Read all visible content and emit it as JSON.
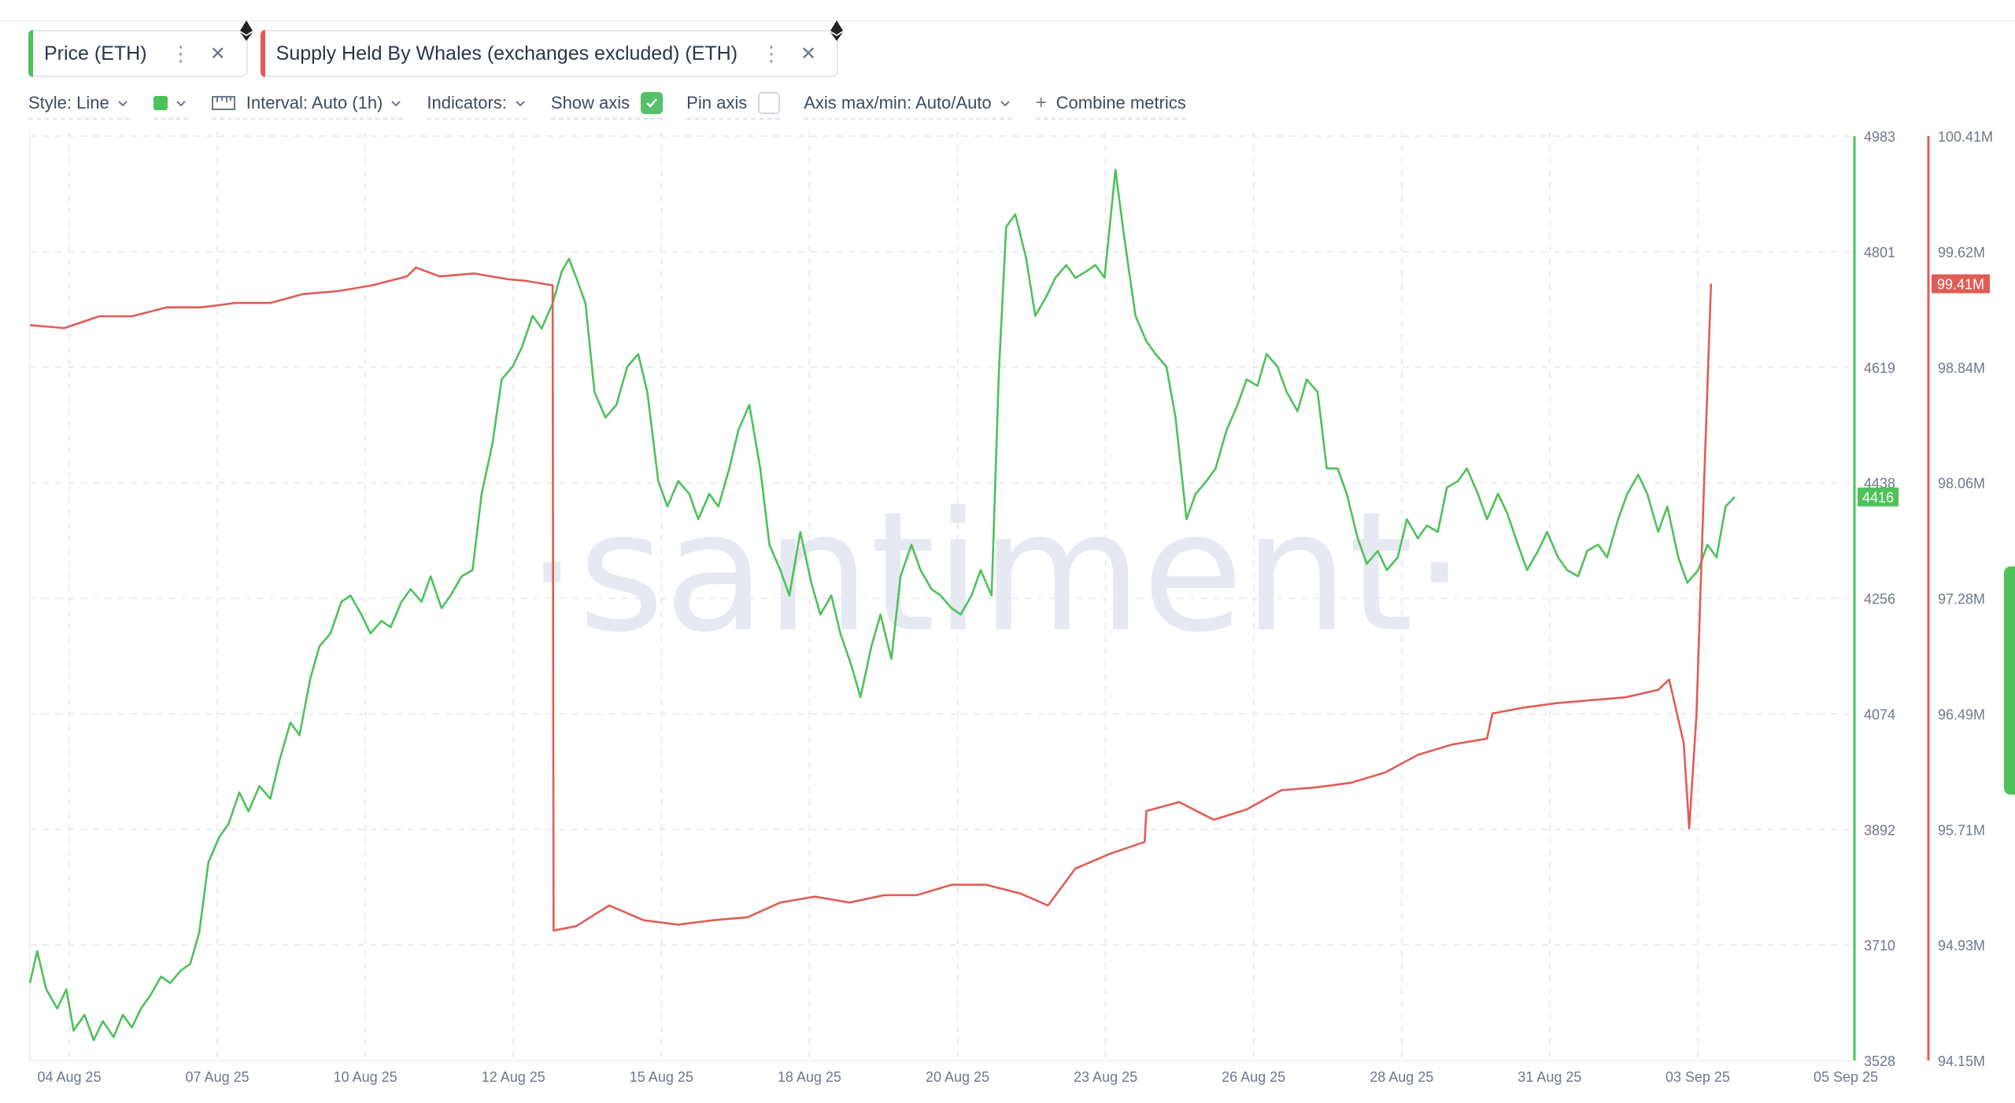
{
  "metrics": [
    {
      "label": "Price (ETH)",
      "color": "#4ec15b",
      "icon": "ethereum-icon"
    },
    {
      "label": "Supply Held By Whales (exchanges excluded) (ETH)",
      "color": "#e05d55",
      "icon": "ethereum-icon"
    }
  ],
  "toolbar": {
    "style_label": "Style: Line",
    "interval_label": "Interval: Auto (1h)",
    "indicators_label": "Indicators:",
    "show_axis_label": "Show axis",
    "show_axis_checked": true,
    "pin_axis_label": "Pin axis",
    "pin_axis_checked": false,
    "axis_minmax_label": "Axis max/min: Auto/Auto",
    "combine_label": "Combine metrics"
  },
  "watermark": "·santiment·",
  "chart_data": {
    "type": "line",
    "x_ticks": [
      "04 Aug 25",
      "07 Aug 25",
      "10 Aug 25",
      "12 Aug 25",
      "15 Aug 25",
      "18 Aug 25",
      "20 Aug 25",
      "23 Aug 25",
      "26 Aug 25",
      "28 Aug 25",
      "31 Aug 25",
      "03 Sep 25",
      "05 Sep 25"
    ],
    "xlim": [
      0,
      100
    ],
    "y_left": {
      "ticks": [
        "4983",
        "4801",
        "4619",
        "4438",
        "4256",
        "4074",
        "3892",
        "3710",
        "3528"
      ],
      "range": [
        3528,
        4983
      ],
      "color": "#4ec15b"
    },
    "y_right": {
      "ticks": [
        "100.41M",
        "99.62M",
        "98.84M",
        "98.06M",
        "97.28M",
        "96.49M",
        "95.71M",
        "94.93M",
        "94.15M"
      ],
      "range": [
        94.15,
        100.41
      ],
      "color": "#e05d55"
    },
    "grid": true,
    "current_labels": {
      "price": "4416",
      "supply": "99.41M"
    },
    "series": [
      {
        "name": "Price (ETH)",
        "axis": "left",
        "color": "#4ec15b",
        "points": [
          [
            0,
            3650
          ],
          [
            0.4,
            3700
          ],
          [
            0.9,
            3640
          ],
          [
            1.5,
            3610
          ],
          [
            2.0,
            3640
          ],
          [
            2.4,
            3575
          ],
          [
            3.0,
            3600
          ],
          [
            3.5,
            3560
          ],
          [
            4.0,
            3590
          ],
          [
            4.6,
            3565
          ],
          [
            5.1,
            3600
          ],
          [
            5.6,
            3580
          ],
          [
            6.1,
            3610
          ],
          [
            6.6,
            3630
          ],
          [
            7.2,
            3660
          ],
          [
            7.7,
            3650
          ],
          [
            8.3,
            3670
          ],
          [
            8.8,
            3680
          ],
          [
            9.3,
            3730
          ],
          [
            9.8,
            3840
          ],
          [
            10.4,
            3880
          ],
          [
            10.9,
            3900
          ],
          [
            11.5,
            3950
          ],
          [
            12.0,
            3920
          ],
          [
            12.6,
            3960
          ],
          [
            13.2,
            3940
          ],
          [
            13.7,
            4000
          ],
          [
            14.3,
            4060
          ],
          [
            14.8,
            4040
          ],
          [
            15.4,
            4130
          ],
          [
            15.9,
            4180
          ],
          [
            16.5,
            4200
          ],
          [
            17.1,
            4250
          ],
          [
            17.6,
            4260
          ],
          [
            18.2,
            4230
          ],
          [
            18.7,
            4200
          ],
          [
            19.3,
            4220
          ],
          [
            19.8,
            4210
          ],
          [
            20.4,
            4250
          ],
          [
            20.9,
            4270
          ],
          [
            21.5,
            4250
          ],
          [
            22.0,
            4290
          ],
          [
            22.6,
            4240
          ],
          [
            23.1,
            4260
          ],
          [
            23.7,
            4290
          ],
          [
            24.3,
            4300
          ],
          [
            24.8,
            4420
          ],
          [
            25.4,
            4500
          ],
          [
            25.9,
            4600
          ],
          [
            26.5,
            4620
          ],
          [
            27.0,
            4650
          ],
          [
            27.6,
            4700
          ],
          [
            28.1,
            4680
          ],
          [
            28.7,
            4720
          ],
          [
            29.2,
            4770
          ],
          [
            29.6,
            4790
          ],
          [
            30.0,
            4760
          ],
          [
            30.5,
            4720
          ],
          [
            31.0,
            4580
          ],
          [
            31.6,
            4540
          ],
          [
            32.2,
            4560
          ],
          [
            32.8,
            4620
          ],
          [
            33.4,
            4640
          ],
          [
            33.9,
            4580
          ],
          [
            34.5,
            4440
          ],
          [
            35.0,
            4400
          ],
          [
            35.6,
            4440
          ],
          [
            36.2,
            4420
          ],
          [
            36.7,
            4380
          ],
          [
            37.3,
            4420
          ],
          [
            37.8,
            4400
          ],
          [
            38.4,
            4460
          ],
          [
            38.9,
            4520
          ],
          [
            39.5,
            4560
          ],
          [
            40.1,
            4460
          ],
          [
            40.6,
            4340
          ],
          [
            41.2,
            4300
          ],
          [
            41.7,
            4260
          ],
          [
            42.3,
            4360
          ],
          [
            42.9,
            4280
          ],
          [
            43.4,
            4230
          ],
          [
            44.0,
            4260
          ],
          [
            44.5,
            4200
          ],
          [
            45.1,
            4150
          ],
          [
            45.6,
            4100
          ],
          [
            46.2,
            4180
          ],
          [
            46.7,
            4230
          ],
          [
            47.3,
            4160
          ],
          [
            47.8,
            4290
          ],
          [
            48.4,
            4340
          ],
          [
            48.9,
            4300
          ],
          [
            49.5,
            4270
          ],
          [
            50.0,
            4260
          ],
          [
            50.6,
            4240
          ],
          [
            51.1,
            4230
          ],
          [
            51.7,
            4260
          ],
          [
            52.2,
            4300
          ],
          [
            52.8,
            4260
          ],
          [
            53.2,
            4610
          ],
          [
            53.6,
            4840
          ],
          [
            54.1,
            4860
          ],
          [
            54.7,
            4790
          ],
          [
            55.2,
            4700
          ],
          [
            55.8,
            4730
          ],
          [
            56.3,
            4760
          ],
          [
            56.9,
            4780
          ],
          [
            57.4,
            4760
          ],
          [
            58.0,
            4770
          ],
          [
            58.5,
            4780
          ],
          [
            59.0,
            4760
          ],
          [
            59.6,
            4930
          ],
          [
            60.1,
            4820
          ],
          [
            60.7,
            4700
          ],
          [
            61.3,
            4660
          ],
          [
            61.8,
            4640
          ],
          [
            62.4,
            4620
          ],
          [
            62.9,
            4540
          ],
          [
            63.5,
            4380
          ],
          [
            64.0,
            4420
          ],
          [
            64.6,
            4440
          ],
          [
            65.1,
            4460
          ],
          [
            65.7,
            4520
          ],
          [
            66.3,
            4560
          ],
          [
            66.8,
            4600
          ],
          [
            67.4,
            4590
          ],
          [
            67.9,
            4640
          ],
          [
            68.5,
            4620
          ],
          [
            69.0,
            4580
          ],
          [
            69.6,
            4550
          ],
          [
            70.1,
            4600
          ],
          [
            70.7,
            4580
          ],
          [
            71.2,
            4460
          ],
          [
            71.8,
            4460
          ],
          [
            72.3,
            4420
          ],
          [
            72.9,
            4350
          ],
          [
            73.4,
            4310
          ],
          [
            74.0,
            4330
          ],
          [
            74.5,
            4300
          ],
          [
            75.1,
            4320
          ],
          [
            75.6,
            4380
          ],
          [
            76.2,
            4350
          ],
          [
            76.7,
            4370
          ],
          [
            77.3,
            4360
          ],
          [
            77.8,
            4430
          ],
          [
            78.4,
            4440
          ],
          [
            78.9,
            4460
          ],
          [
            79.5,
            4420
          ],
          [
            80.0,
            4380
          ],
          [
            80.6,
            4420
          ],
          [
            81.1,
            4390
          ],
          [
            81.7,
            4340
          ],
          [
            82.2,
            4300
          ],
          [
            82.8,
            4330
          ],
          [
            83.3,
            4360
          ],
          [
            83.9,
            4320
          ],
          [
            84.4,
            4300
          ],
          [
            85.0,
            4290
          ],
          [
            85.5,
            4330
          ],
          [
            86.1,
            4340
          ],
          [
            86.6,
            4320
          ],
          [
            87.2,
            4380
          ],
          [
            87.7,
            4420
          ],
          [
            88.3,
            4450
          ],
          [
            88.8,
            4420
          ],
          [
            89.4,
            4360
          ],
          [
            89.9,
            4400
          ],
          [
            90.5,
            4320
          ],
          [
            91.0,
            4280
          ],
          [
            91.6,
            4300
          ],
          [
            92.1,
            4340
          ],
          [
            92.6,
            4320
          ],
          [
            93.1,
            4400
          ],
          [
            93.6,
            4415
          ]
        ]
      },
      {
        "name": "Supply Held By Whales (exchanges excluded) (ETH)",
        "axis": "right",
        "color": "#e05d55",
        "points": [
          [
            0,
            99.13
          ],
          [
            1.9,
            99.11
          ],
          [
            3.8,
            99.19
          ],
          [
            5.6,
            99.19
          ],
          [
            7.5,
            99.25
          ],
          [
            9.4,
            99.25
          ],
          [
            11.3,
            99.28
          ],
          [
            13.2,
            99.28
          ],
          [
            15.0,
            99.34
          ],
          [
            16.9,
            99.36
          ],
          [
            18.8,
            99.4
          ],
          [
            20.7,
            99.46
          ],
          [
            21.2,
            99.52
          ],
          [
            22.5,
            99.46
          ],
          [
            24.4,
            99.48
          ],
          [
            26.3,
            99.44
          ],
          [
            27.2,
            99.43
          ],
          [
            28.7,
            99.4
          ],
          [
            28.75,
            95.03
          ],
          [
            30.0,
            95.06
          ],
          [
            31.8,
            95.2
          ],
          [
            33.7,
            95.1
          ],
          [
            35.6,
            95.07
          ],
          [
            37.5,
            95.1
          ],
          [
            39.4,
            95.12
          ],
          [
            41.2,
            95.22
          ],
          [
            43.1,
            95.26
          ],
          [
            45.0,
            95.22
          ],
          [
            46.9,
            95.27
          ],
          [
            48.7,
            95.27
          ],
          [
            50.6,
            95.34
          ],
          [
            52.5,
            95.34
          ],
          [
            54.4,
            95.28
          ],
          [
            55.9,
            95.2
          ],
          [
            57.4,
            95.45
          ],
          [
            59.3,
            95.55
          ],
          [
            61.2,
            95.63
          ],
          [
            61.3,
            95.84
          ],
          [
            63.1,
            95.9
          ],
          [
            65.0,
            95.78
          ],
          [
            66.8,
            95.85
          ],
          [
            68.7,
            95.98
          ],
          [
            70.6,
            96.0
          ],
          [
            72.5,
            96.03
          ],
          [
            74.4,
            96.1
          ],
          [
            76.2,
            96.22
          ],
          [
            78.1,
            96.29
          ],
          [
            80.0,
            96.33
          ],
          [
            80.3,
            96.5
          ],
          [
            82.0,
            96.54
          ],
          [
            83.8,
            96.57
          ],
          [
            85.7,
            96.59
          ],
          [
            87.6,
            96.61
          ],
          [
            89.4,
            96.66
          ],
          [
            90.0,
            96.73
          ],
          [
            90.8,
            96.3
          ],
          [
            91.1,
            95.72
          ],
          [
            91.5,
            96.49
          ],
          [
            91.9,
            98.0
          ],
          [
            92.3,
            99.41
          ]
        ]
      }
    ]
  }
}
